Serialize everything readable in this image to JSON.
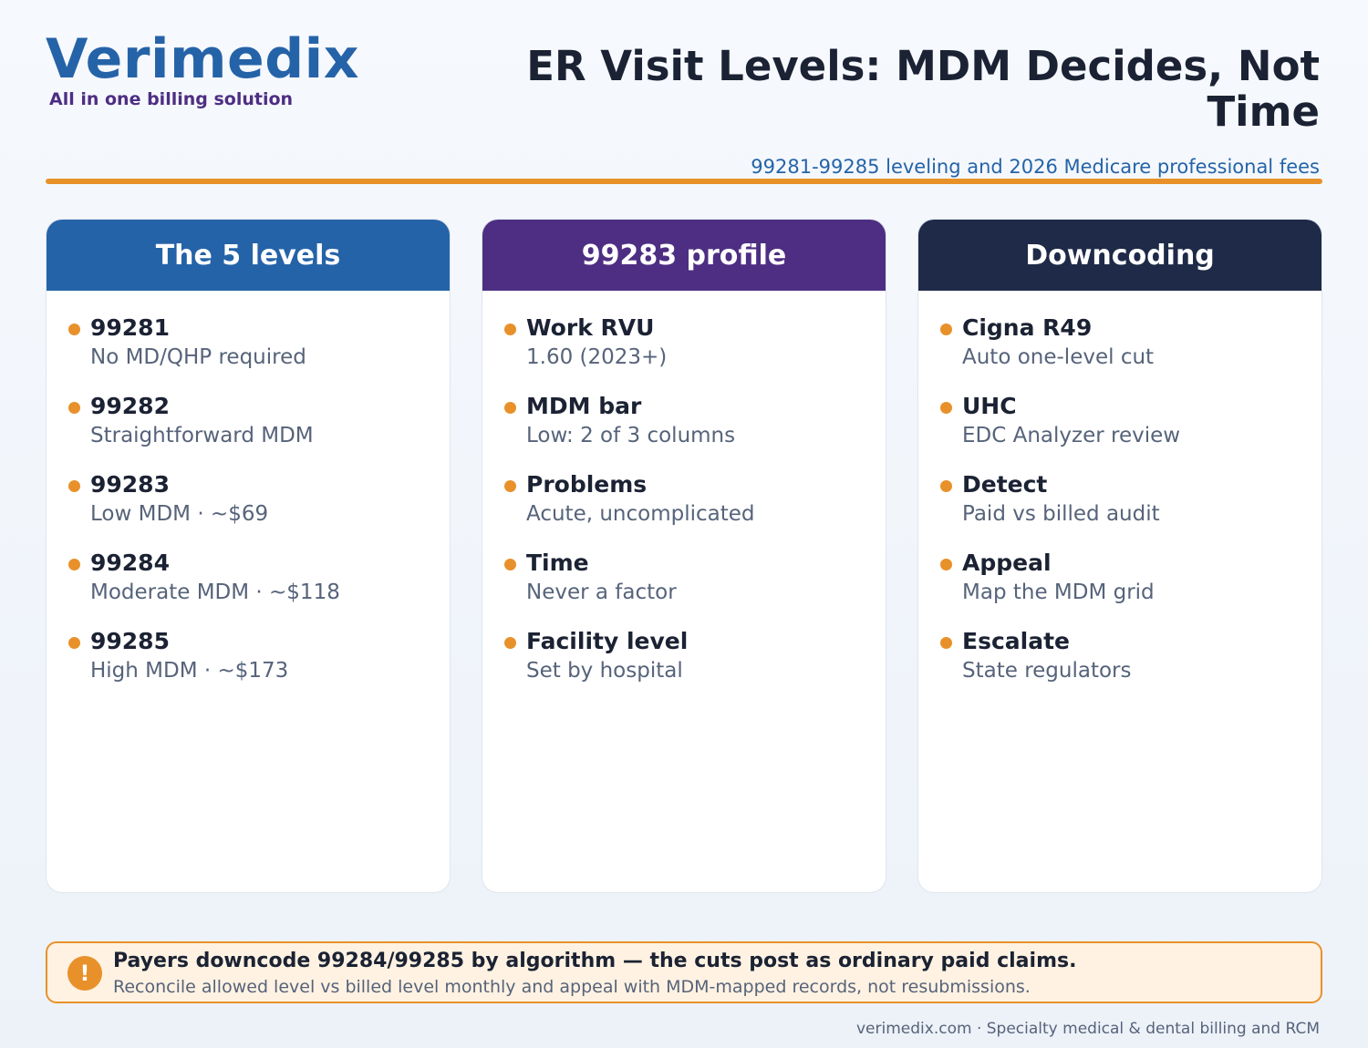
{
  "brand": {
    "name": "Verimedix",
    "tagline": "All in one billing solution"
  },
  "header": {
    "title": "ER Visit Levels: MDM Decides, Not Time",
    "subtitle": "99281-99285 leveling and 2026 Medicare professional fees"
  },
  "colors": {
    "brand_blue": "#2563a8",
    "purple": "#4e2e83",
    "navy": "#1e2a47",
    "accent_orange": "#e8912a"
  },
  "cards": [
    {
      "title": "The 5 levels",
      "items": [
        {
          "title": "99281",
          "sub": "No MD/QHP required"
        },
        {
          "title": "99282",
          "sub": "Straightforward MDM"
        },
        {
          "title": "99283",
          "sub": "Low MDM · ~$69"
        },
        {
          "title": "99284",
          "sub": "Moderate MDM · ~$118"
        },
        {
          "title": "99285",
          "sub": "High MDM · ~$173"
        }
      ]
    },
    {
      "title": "99283 profile",
      "items": [
        {
          "title": "Work RVU",
          "sub": "1.60 (2023+)"
        },
        {
          "title": "MDM bar",
          "sub": "Low: 2 of 3 columns"
        },
        {
          "title": "Problems",
          "sub": "Acute, uncomplicated"
        },
        {
          "title": "Time",
          "sub": "Never a factor"
        },
        {
          "title": "Facility level",
          "sub": "Set by hospital"
        }
      ]
    },
    {
      "title": "Downcoding",
      "items": [
        {
          "title": "Cigna R49",
          "sub": "Auto one-level cut"
        },
        {
          "title": "UHC",
          "sub": "EDC Analyzer review"
        },
        {
          "title": "Detect",
          "sub": "Paid vs billed audit"
        },
        {
          "title": "Appeal",
          "sub": "Map the MDM grid"
        },
        {
          "title": "Escalate",
          "sub": "State regulators"
        }
      ]
    }
  ],
  "callout": {
    "icon": "alert-icon",
    "icon_glyph": "!",
    "title": "Payers downcode 99284/99285 by algorithm — the cuts post as ordinary paid claims.",
    "sub": "Reconcile allowed level vs billed level monthly and appeal with MDM-mapped records, not resubmissions."
  },
  "footer": {
    "text": "verimedix.com · Specialty medical & dental billing and RCM"
  }
}
